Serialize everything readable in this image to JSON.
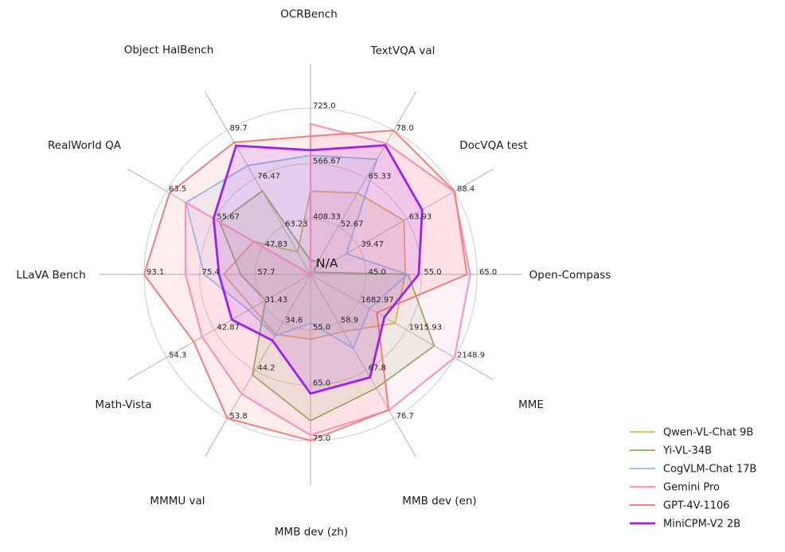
{
  "figure": {
    "background": "#ffffff",
    "center_label": "N/A"
  },
  "chart_data": {
    "type": "radar",
    "title": "",
    "grid": "on",
    "rings": 3,
    "center_label": "N/A",
    "axes": [
      {
        "label": "OCRBench",
        "min": 250,
        "max": 725,
        "tick_labels": [
          "408.33",
          "566.67",
          "725.0"
        ]
      },
      {
        "label": "TextVQA val",
        "min": 40,
        "max": 78,
        "tick_labels": [
          "52.67",
          "65.33",
          "78.0"
        ]
      },
      {
        "label": "DocVQA test",
        "min": 15,
        "max": 88.4,
        "tick_labels": [
          "39.47",
          "63.93",
          "88.4"
        ]
      },
      {
        "label": "Open-Compass",
        "min": 35,
        "max": 65,
        "tick_labels": [
          "45.0",
          "55.0",
          "65.0"
        ]
      },
      {
        "label": "MME",
        "min": 1450,
        "max": 2148.9,
        "tick_labels": [
          "1682.97",
          "1915.93",
          "2148.9"
        ]
      },
      {
        "label": "MMB dev (en)",
        "min": 50,
        "max": 76.7,
        "tick_labels": [
          "58.9",
          "67.8",
          "76.7"
        ]
      },
      {
        "label": "MMB dev (zh)",
        "min": 45,
        "max": 75,
        "tick_labels": [
          "55.0",
          "65.0",
          "75.0"
        ]
      },
      {
        "label": "MMMU val",
        "min": 25,
        "max": 53.8,
        "tick_labels": [
          "34.6",
          "44.2",
          "53.8"
        ]
      },
      {
        "label": "Math-Vista",
        "min": 20,
        "max": 54.3,
        "tick_labels": [
          "31.43",
          "42.87",
          "54.3"
        ]
      },
      {
        "label": "LLaVA Bench",
        "min": 40,
        "max": 93.1,
        "tick_labels": [
          "57.7",
          "75.4",
          "93.1"
        ]
      },
      {
        "label": "RealWorld QA",
        "min": 40,
        "max": 63.5,
        "tick_labels": [
          "47.83",
          "55.67",
          "63.5"
        ]
      },
      {
        "label": "Object HalBench",
        "min": 50,
        "max": 89.7,
        "tick_labels": [
          "63.23",
          "76.47",
          "89.7"
        ]
      }
    ],
    "series": [
      {
        "name": "Qwen-VL-Chat 9B",
        "color": "#e2b155",
        "values": [
          488,
          61.5,
          62.6,
          52.1,
          1860.0,
          60.6,
          56.7,
          37.0,
          33.8,
          67.7,
          49.3,
          56.2
        ]
      },
      {
        "name": "Yi-VL-34B",
        "color": "#7db454",
        "values": [
          290,
          43.4,
          16.9,
          52.6,
          2050.2,
          71.1,
          71.4,
          45.1,
          30.7,
          62.3,
          54.8,
          73.0
        ]
      },
      {
        "name": "CogVLM-Chat 17B",
        "color": "#86c1f4",
        "values": [
          590,
          70.4,
          33.3,
          52.5,
          1736.6,
          63.7,
          53.8,
          37.3,
          34.7,
          73.9,
          60.3,
          80.0
        ]
      },
      {
        "name": "Gemini Pro",
        "color": "#fb96c3",
        "values": [
          680,
          74.6,
          88.1,
          63.8,
          2148.9,
          75.2,
          74.0,
          48.9,
          45.8,
          79.9,
          60.4,
          null
        ]
      },
      {
        "name": "GPT-4V-1106",
        "color": "#f57e79",
        "values": [
          645,
          78.0,
          88.4,
          63.2,
          1771.5,
          75.1,
          75.0,
          53.8,
          47.8,
          93.1,
          63.0,
          86.4
        ]
      },
      {
        "name": "MiniCPM-V2 2B",
        "color": "#9c20ee",
        "values": [
          605,
          74.1,
          71.9,
          54.5,
          1808.6,
          69.1,
          66.5,
          38.2,
          38.7,
          69.2,
          55.8,
          85.5
        ]
      }
    ],
    "legend_position": "bottom-right",
    "colors": {
      "grid_ring": "#cccccc",
      "spoke": "#aaaaaa",
      "text": "#1a1a1a"
    }
  }
}
